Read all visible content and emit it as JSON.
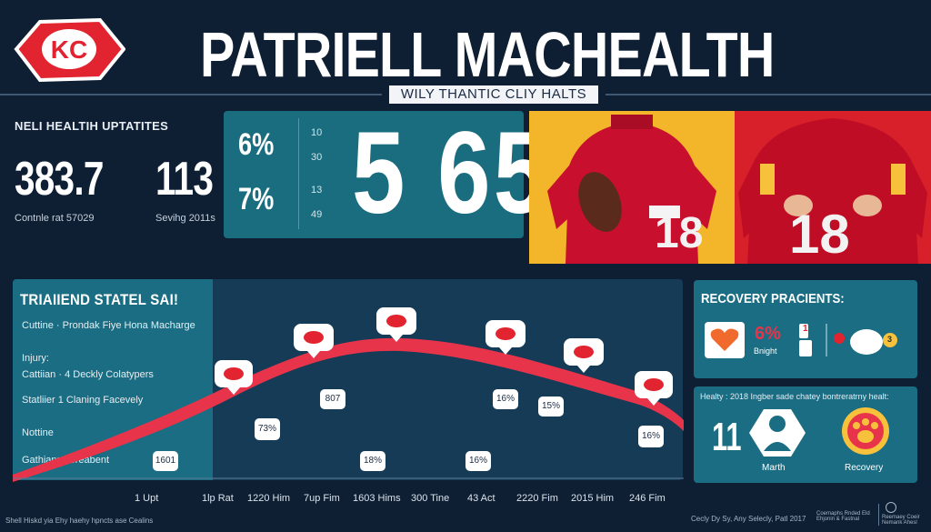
{
  "header": {
    "title": "PATRIELL MACHEALTH",
    "subtitle": "WILY THANTIC CLIY HALTS"
  },
  "health_updates": {
    "title": "NELI HEALTIH UPTATITES",
    "value_1": "383.7",
    "caption_1": "Contnle rat 57029",
    "value_2": "113",
    "caption_2": "Sevihg 2011s"
  },
  "stats": {
    "pct_1": "6%",
    "pct_2": "7%",
    "small": [
      "10",
      "30",
      "13",
      "49"
    ],
    "big_number": "5 65"
  },
  "players": {
    "jersey_number": "18"
  },
  "trend": {
    "title": "TRIAIIEND STATEL SAI!",
    "lines": [
      "Cuttine  ·  Prondak Fiye Hona Macharge",
      "Injury:",
      "Cattiian  ·  4 Deckly Colatypers",
      "Statliier  1 Claning Facevely",
      "Nottine",
      "Gathian:  ·  Sreabent"
    ],
    "chart_labels": [
      "1601",
      "73%",
      "807",
      "18%",
      "16%",
      "16%",
      "15%",
      "16%"
    ],
    "x_ticks": [
      "1 Upt",
      "1lp Rat",
      "1220 Him",
      "7up Fim",
      "1603 Hims",
      "300 Tine",
      "43 Act",
      "2220 Fim",
      "2015 Him",
      "246 Fim"
    ]
  },
  "recovery": {
    "title": "RECOVERY PRACIENTS:",
    "pct": "6%",
    "pct_label": "Bnight",
    "badge_1": "1",
    "badge_2": "3",
    "note": "Healty : 2018 Ingber sade chatey bontreratrny healt:",
    "label_1": "Marth",
    "label_2": "Recovery",
    "big_mark": "11"
  },
  "footer": {
    "left": "Shell Hiskd yia Ehy haehy hpncts ase Cealins",
    "right": "Cecly Dy Sy, Any Selecly, Patl 2017",
    "small_1": "Coemaphs Rnded Eld\nEhjonin & Fastnal",
    "small_2": "Reemaey Coeir\nNemank Ahesl"
  },
  "colors": {
    "bg": "#0e1e33",
    "teal": "#1a6d7f",
    "red": "#e8344a",
    "gold": "#f3b52a",
    "chiefs_red": "#d8202a"
  }
}
